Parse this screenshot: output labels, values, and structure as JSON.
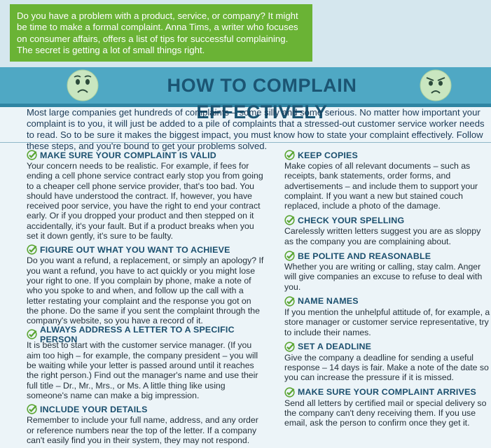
{
  "intro": {
    "text": "Do you have a problem with a product, service, or company? It might be time to make a formal complaint. Anna Tims, a writer who focuses on consumer affairs, offers a list of tips for successful complaining. The secret is getting a lot of small things right."
  },
  "header": {
    "title": "HOW TO COMPLAIN EFFECTIVELY",
    "face_left_icon": "worried-face-icon",
    "face_right_icon": "angry-face-icon"
  },
  "lead": "Most large companies get hundreds of complaints – some silly and some serious. No matter how important your complaint is to you, it will just be added to a pile of complaints that a stressed-out customer service worker needs to read. So to be sure it makes the biggest impact, you must know how to state your complaint effectively. Follow these steps, and you're bound to get your problems solved.",
  "left_tips": [
    {
      "title": "MAKE SURE YOUR COMPLAINT IS VALID",
      "body": "Your concern needs to be realistic. For example, if fees for ending a cell phone service contract early stop you from going to a cheaper cell phone service provider, that's too bad. You should have understood the contract. If, however, you have received poor service, you have the right to end your contract early. Or if you dropped your product and then stepped on it accidentally, it's your fault. But if a product breaks when you set it down gently, it's sure to be faulty."
    },
    {
      "title": "FIGURE OUT WHAT YOU WANT TO ACHIEVE",
      "body": "Do you want a refund, a replacement, or simply an apology? If you want a refund, you have to act quickly or you might lose your right to one. If you complain by phone, make a note of who you spoke to and when, and follow up the call with a letter restating your complaint and the response you got on the phone. Do the same if you sent the complaint through the company's website, so you have a record of it."
    },
    {
      "title": "ALWAYS ADDRESS A LETTER TO A SPECIFIC PERSON",
      "body": "It is best to start with the customer service manager. (If you aim too high – for example, the company president – you will be waiting while your letter is passed around until it reaches the right person.) Find out the manager's name and use their full title – Dr., Mr., Mrs., or Ms. A little thing like using someone's name can make a big impression."
    },
    {
      "title": "INCLUDE YOUR DETAILS",
      "body": "Remember to include your full name, address, and any order or reference numbers near the top of the letter. If a company can't easily find you in their system, they may not respond."
    }
  ],
  "right_tips": [
    {
      "title": "KEEP COPIES",
      "body": "Make copies of all relevant documents – such as receipts, bank statements, order forms, and advertisements – and include them to support your complaint. If you want a new but stained couch replaced, include a photo of the damage."
    },
    {
      "title": "CHECK YOUR SPELLING",
      "body": "Carelessly written letters suggest you are as sloppy as the company you are complaining about."
    },
    {
      "title": "BE POLITE AND REASONABLE",
      "body": "Whether you are writing or calling, stay calm. Anger will give companies an excuse to refuse to deal with you."
    },
    {
      "title": "NAME NAMES",
      "body": "If you mention the unhelpful attitude of, for example, a store manager or customer service representative, try to include their names."
    },
    {
      "title": "SET A DEADLINE",
      "body": "Give the company a deadline for sending a useful response – 14 days is fair. Make a note of the date so you can increase the pressure if it is missed."
    },
    {
      "title": "MAKE SURE YOUR COMPLAINT ARRIVES",
      "body": "Send all letters by certified mail or special delivery so the company can't deny receiving them. If you use email, ask the person to confirm once they get it."
    }
  ],
  "colors": {
    "intro_bg": "#6ab335",
    "title_bg": "#4fa8c4",
    "title_text": "#1b5573",
    "check_green": "#5aa531"
  }
}
